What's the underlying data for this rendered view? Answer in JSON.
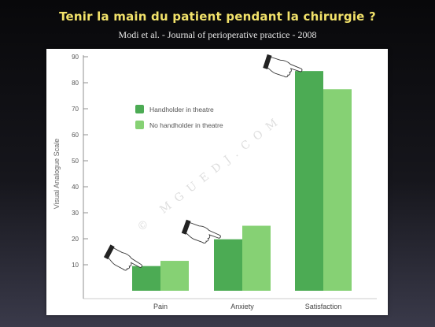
{
  "slide": {
    "title": "Tenir la main du patient pendant la chirurgie ?",
    "subtitle": "Modi et al. - Journal of perioperative practice - 2008"
  },
  "watermark": "© MGUEDJ.COM",
  "colors": {
    "series1": "#4cab54",
    "series2": "#86d174"
  },
  "chart_data": {
    "type": "bar",
    "ylabel": "Visual Analogue Scale",
    "xlabel": "",
    "ylim": [
      0,
      90
    ],
    "yticks": [
      10,
      20,
      30,
      40,
      50,
      60,
      70,
      80,
      90
    ],
    "categories": [
      "Pain",
      "Anxiety",
      "Satisfaction"
    ],
    "series": [
      {
        "name": "Handholder in theatre",
        "values": [
          9.5,
          19.8,
          84.5
        ]
      },
      {
        "name": "No handholder in theatre",
        "values": [
          11.5,
          25,
          77.5
        ]
      }
    ],
    "legend_position": "upper-left",
    "grid": false,
    "annotations": [
      "pointing-hand-icon over Pain",
      "pointing-hand-icon over Anxiety",
      "pointing-hand-icon over Satisfaction"
    ]
  }
}
